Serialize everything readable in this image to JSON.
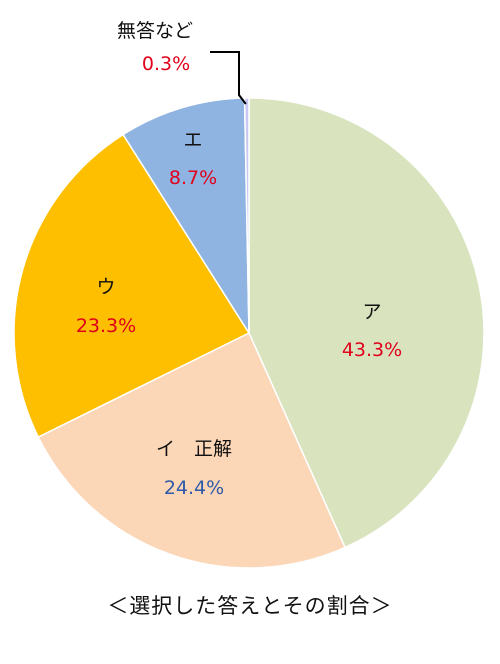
{
  "chart_data": {
    "type": "pie",
    "title": "",
    "caption": "＜選択した答えとその割合＞",
    "start_angle_deg": 0,
    "direction": "clockwise",
    "slices": [
      {
        "name": "ア",
        "percent_label": "43.3%",
        "value": 43.3,
        "color": "#d9e4bf",
        "pct_color": "#e0001b"
      },
      {
        "name": "イ　正解",
        "percent_label": "24.4%",
        "value": 24.4,
        "color": "#fbd6b7",
        "pct_color": "#2f5aa8"
      },
      {
        "name": "ウ",
        "percent_label": "23.3%",
        "value": 23.3,
        "color": "#fdbf00",
        "pct_color": "#e0001b"
      },
      {
        "name": "エ",
        "percent_label": "8.7%",
        "value": 8.7,
        "color": "#8fb4e1",
        "pct_color": "#e0001b"
      },
      {
        "name": "無答など",
        "percent_label": "0.3%",
        "value": 0.3,
        "color": "#c8c8f2",
        "pct_color": "#e0001b"
      }
    ]
  }
}
